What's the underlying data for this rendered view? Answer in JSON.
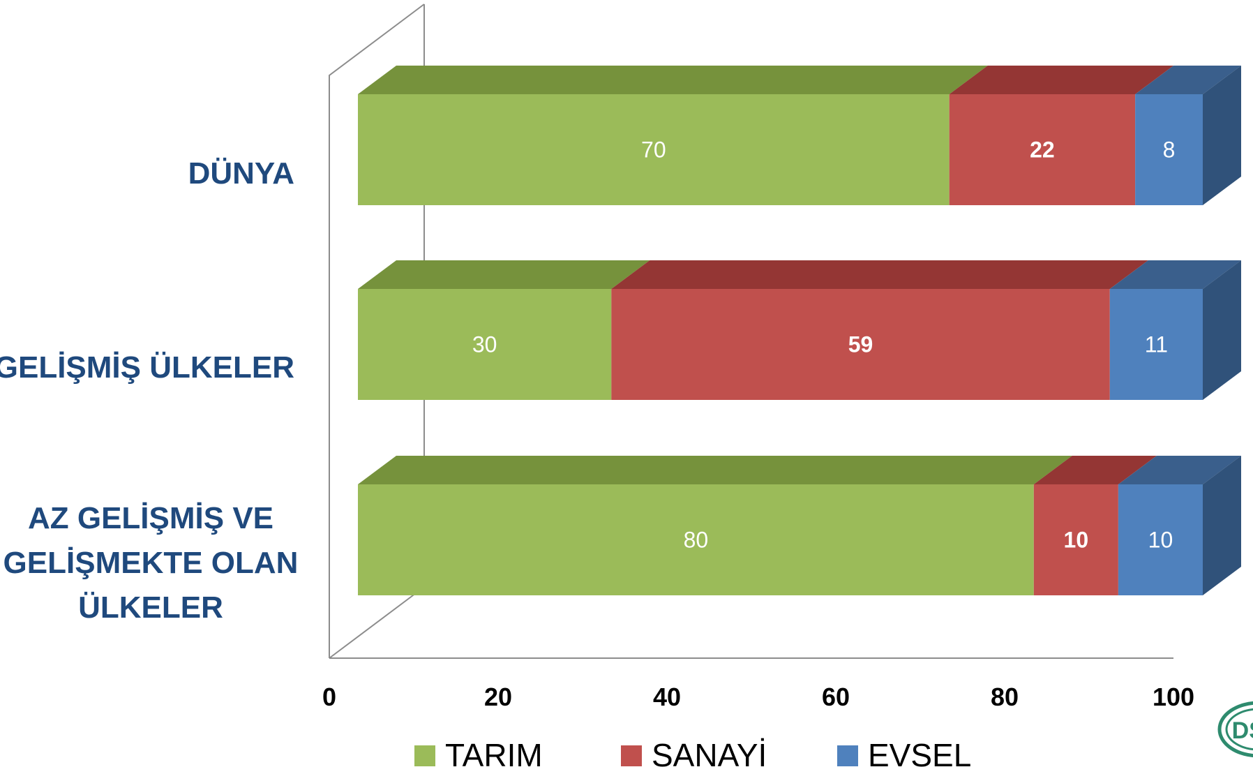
{
  "chart_data": {
    "type": "bar",
    "orientation": "horizontal",
    "stacked": true,
    "style_3d": true,
    "categories": [
      "DÜNYA",
      "GELİŞMİŞ ÜLKELER",
      "AZ GELİŞMİŞ VE GELİŞMEKTE OLAN ÜLKELER"
    ],
    "category_lines": [
      [
        "DÜNYA"
      ],
      [
        "GELİŞMİŞ ÜLKELER"
      ],
      [
        "AZ GELİŞMİŞ VE",
        "GELİŞMEKTE OLAN",
        "ÜLKELER"
      ]
    ],
    "series": [
      {
        "name": "TARIM",
        "values": [
          70,
          30,
          80
        ],
        "color": "#9BBB59",
        "top_color": "#76923C",
        "labels": [
          "70",
          "30",
          "80"
        ],
        "label_bold": false
      },
      {
        "name": "SANAYİ",
        "values": [
          22,
          59,
          10
        ],
        "color": "#C0504D",
        "top_color": "#943634",
        "labels": [
          "22",
          "59",
          "10"
        ],
        "label_bold": true
      },
      {
        "name": "EVSEL",
        "values": [
          8,
          11,
          10
        ],
        "color": "#4F81BD",
        "top_color": "#3A5F8C",
        "side_color": "#30527A",
        "labels": [
          "8",
          "11",
          "10"
        ],
        "label_bold": false
      }
    ],
    "xlim": [
      0,
      100
    ],
    "x_ticks": [
      "0",
      "20",
      "40",
      "60",
      "80",
      "100"
    ],
    "title": "",
    "xlabel": "",
    "ylabel": "",
    "legend_position": "bottom",
    "grid": false,
    "category_label_color": "#1F497D",
    "axis_color": "#8C8C8C"
  },
  "logo": {
    "name": "dsi-logo",
    "text": "DSİ",
    "color": "#2E8B6E"
  }
}
